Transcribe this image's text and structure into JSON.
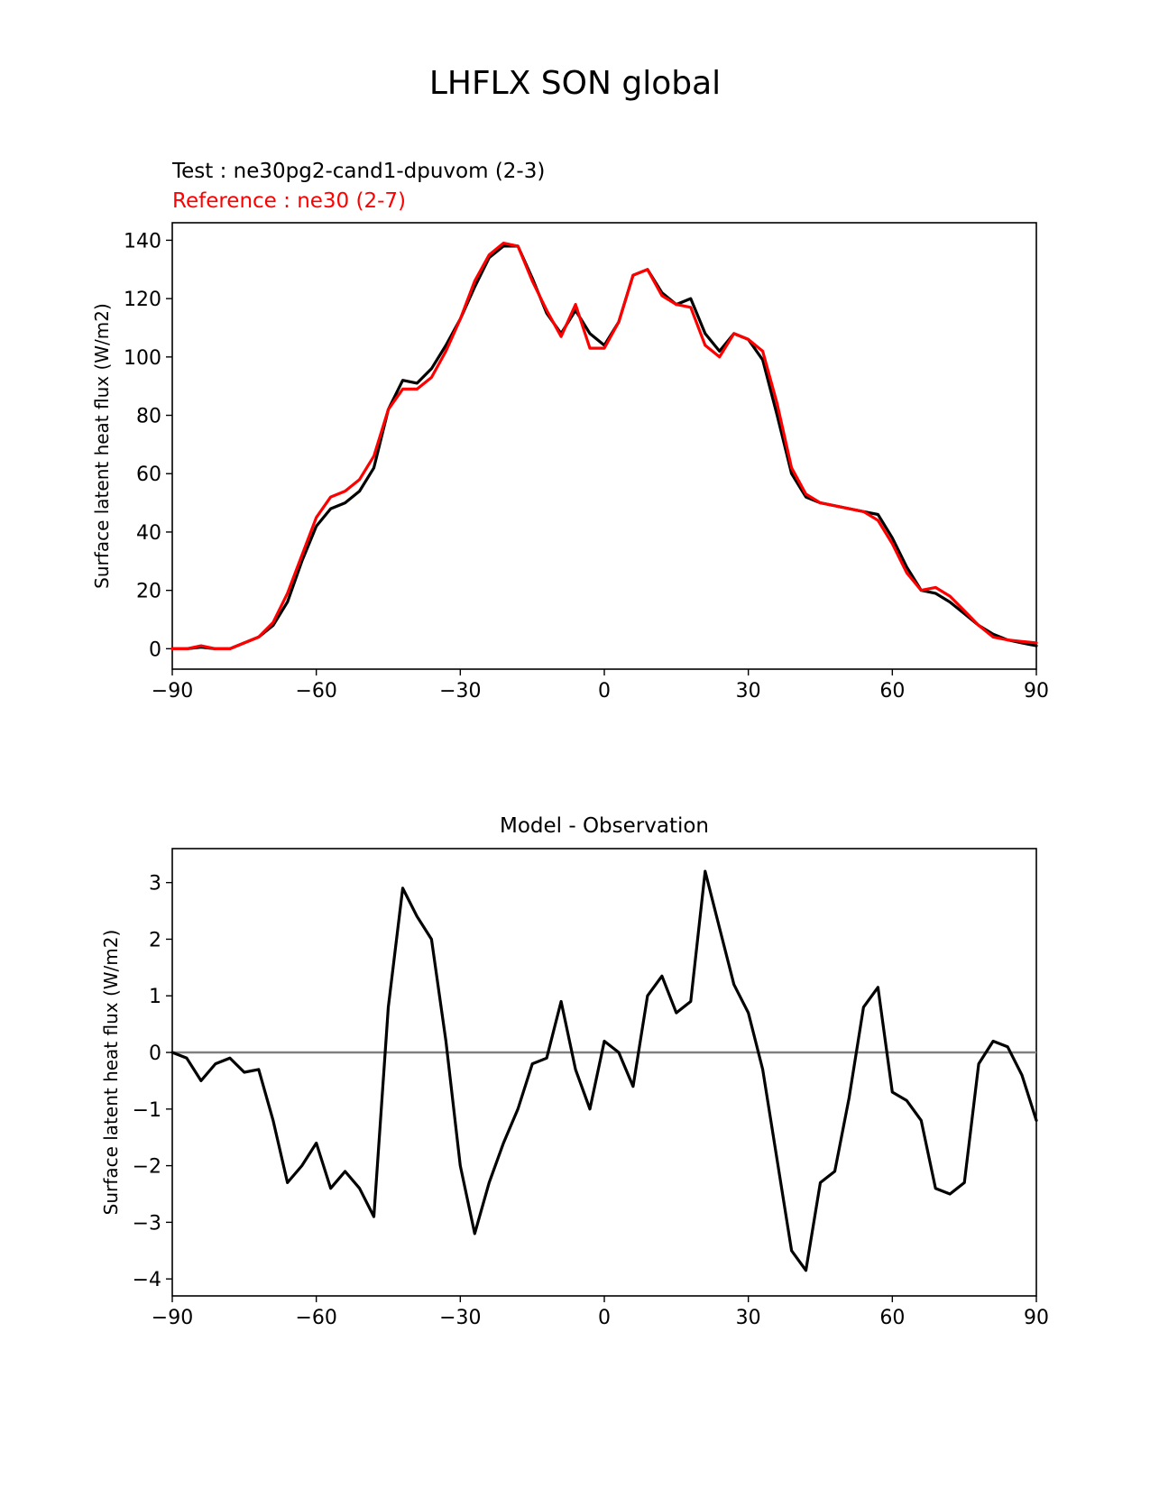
{
  "figure": {
    "title": "LHFLX SON global",
    "colors": {
      "test": "#000000",
      "reference": "#ff0000",
      "zero_line": "#808080",
      "axis": "#000000"
    }
  },
  "chart_data": [
    {
      "type": "line",
      "title": "",
      "test_label": "Test : ne30pg2-cand1-dpuvom (2-3)",
      "reference_label": "Reference : ne30 (2-7)",
      "xlabel": "",
      "ylabel": "Surface latent heat flux (W/m2)",
      "xlim": [
        -90,
        90
      ],
      "ylim": [
        -7,
        146
      ],
      "xticks": [
        -90,
        -60,
        -30,
        0,
        30,
        60,
        90
      ],
      "xtick_labels": [
        "−90",
        "−60",
        "−30",
        "0",
        "30",
        "60",
        "90"
      ],
      "yticks": [
        0,
        20,
        40,
        60,
        80,
        100,
        120,
        140
      ],
      "ytick_labels": [
        "0",
        "20",
        "40",
        "60",
        "80",
        "100",
        "120",
        "140"
      ],
      "series": [
        {
          "name": "Test : ne30pg2-cand1-dpuvom (2-3)",
          "color": "#000000",
          "x": [
            -90,
            -87,
            -84,
            -81,
            -78,
            -75,
            -72,
            -69,
            -66,
            -63,
            -60,
            -57,
            -54,
            -51,
            -48,
            -45,
            -42,
            -39,
            -36,
            -33,
            -30,
            -27,
            -24,
            -21,
            -18,
            -15,
            -12,
            -9,
            -6,
            -3,
            0,
            3,
            6,
            9,
            12,
            15,
            18,
            21,
            24,
            27,
            30,
            33,
            36,
            39,
            42,
            45,
            48,
            51,
            54,
            57,
            60,
            63,
            66,
            69,
            72,
            75,
            78,
            81,
            84,
            87,
            90
          ],
          "y": [
            0,
            0,
            0.5,
            0,
            0,
            2,
            4,
            8,
            16,
            30,
            42,
            48,
            50,
            54,
            62,
            82,
            92,
            91,
            96,
            104,
            113,
            124,
            134,
            138,
            138,
            127,
            115,
            108,
            116,
            108,
            104,
            112,
            128,
            130,
            122,
            118,
            120,
            108,
            102,
            108,
            106,
            99,
            80,
            60,
            52,
            50,
            49,
            48,
            47,
            46,
            38,
            28,
            20,
            19,
            16,
            12,
            8,
            5,
            3,
            2,
            1
          ],
          "values": [
            0,
            0,
            0.5,
            0,
            0,
            2,
            4,
            8,
            16,
            30,
            42,
            48,
            50,
            54,
            62,
            82,
            92,
            91,
            96,
            104,
            113,
            124,
            134,
            138,
            138,
            127,
            115,
            108,
            116,
            108,
            104,
            112,
            128,
            130,
            122,
            118,
            120,
            108,
            102,
            108,
            106,
            99,
            80,
            60,
            52,
            50,
            49,
            48,
            47,
            46,
            38,
            28,
            20,
            19,
            16,
            12,
            8,
            5,
            3,
            2,
            1
          ]
        },
        {
          "name": "Reference : ne30 (2-7)",
          "color": "#ff0000",
          "x": [
            -90,
            -87,
            -84,
            -81,
            -78,
            -75,
            -72,
            -69,
            -66,
            -63,
            -60,
            -57,
            -54,
            -51,
            -48,
            -45,
            -42,
            -39,
            -36,
            -33,
            -30,
            -27,
            -24,
            -21,
            -18,
            -15,
            -12,
            -9,
            -6,
            -3,
            0,
            3,
            6,
            9,
            12,
            15,
            18,
            21,
            24,
            27,
            30,
            33,
            36,
            39,
            42,
            45,
            48,
            51,
            54,
            57,
            60,
            63,
            66,
            69,
            72,
            75,
            78,
            81,
            84,
            87,
            90
          ],
          "y": [
            0,
            0,
            1,
            0,
            0,
            2,
            4,
            9,
            19,
            32,
            45,
            52,
            54,
            58,
            66,
            82,
            89,
            89,
            93,
            102,
            113,
            126,
            135,
            139,
            138,
            126,
            116,
            107,
            118,
            103,
            103,
            112,
            128,
            130,
            121,
            118,
            117,
            104,
            100,
            108,
            106,
            102,
            84,
            62,
            53,
            50,
            49,
            48,
            47,
            44,
            36,
            26,
            20,
            21,
            18,
            13,
            8,
            4,
            3,
            2.5,
            2
          ],
          "values": [
            0,
            0,
            1,
            0,
            0,
            2,
            4,
            9,
            19,
            32,
            45,
            52,
            54,
            58,
            66,
            82,
            89,
            89,
            93,
            102,
            113,
            126,
            135,
            139,
            138,
            126,
            116,
            107,
            118,
            103,
            103,
            112,
            128,
            130,
            121,
            118,
            117,
            104,
            100,
            108,
            106,
            102,
            84,
            62,
            53,
            50,
            49,
            48,
            47,
            44,
            36,
            26,
            20,
            21,
            18,
            13,
            8,
            4,
            3,
            2.5,
            2
          ]
        }
      ]
    },
    {
      "type": "line",
      "title": "Model - Observation",
      "xlabel": "",
      "ylabel": "Surface latent heat flux (W/m2)",
      "xlim": [
        -90,
        90
      ],
      "ylim": [
        -4.3,
        3.6
      ],
      "xticks": [
        -90,
        -60,
        -30,
        0,
        30,
        60,
        90
      ],
      "xtick_labels": [
        "−90",
        "−60",
        "−30",
        "0",
        "30",
        "60",
        "90"
      ],
      "yticks": [
        -4,
        -3,
        -2,
        -1,
        0,
        1,
        2,
        3
      ],
      "ytick_labels": [
        "−4",
        "−3",
        "−2",
        "−1",
        "0",
        "1",
        "2",
        "3"
      ],
      "zero_line": 0,
      "series": [
        {
          "name": "Model - Observation",
          "color": "#000000",
          "x": [
            -90,
            -87,
            -84,
            -81,
            -78,
            -75,
            -72,
            -69,
            -66,
            -63,
            -60,
            -57,
            -54,
            -51,
            -48,
            -45,
            -42,
            -39,
            -36,
            -33,
            -30,
            -27,
            -24,
            -21,
            -18,
            -15,
            -12,
            -9,
            -6,
            -3,
            0,
            3,
            6,
            9,
            12,
            15,
            18,
            21,
            24,
            27,
            30,
            33,
            36,
            39,
            42,
            45,
            48,
            51,
            54,
            57,
            60,
            63,
            66,
            69,
            72,
            75,
            78,
            81,
            84,
            87,
            90
          ],
          "y": [
            0,
            -0.1,
            -0.5,
            -0.2,
            -0.1,
            -0.35,
            -0.3,
            -1.2,
            -2.3,
            -2.0,
            -1.6,
            -2.4,
            -2.1,
            -2.4,
            -2.9,
            0.8,
            2.9,
            2.4,
            2.0,
            0.2,
            -2.0,
            -3.2,
            -2.3,
            -1.6,
            -1.0,
            -0.2,
            -0.1,
            0.9,
            -0.3,
            -1.0,
            0.2,
            0.0,
            -0.6,
            1.0,
            1.35,
            0.7,
            0.9,
            3.2,
            2.2,
            1.2,
            0.7,
            -0.3,
            -1.9,
            -3.5,
            -3.85,
            -2.3,
            -2.1,
            -0.8,
            0.8,
            1.15,
            -0.7,
            -0.85,
            -1.2,
            -2.4,
            -2.5,
            -2.3,
            -0.2,
            0.2,
            0.1,
            -0.4,
            -1.2
          ],
          "values": [
            0,
            -0.1,
            -0.5,
            -0.2,
            -0.1,
            -0.35,
            -0.3,
            -1.2,
            -2.3,
            -2.0,
            -1.6,
            -2.4,
            -2.1,
            -2.4,
            -2.9,
            0.8,
            2.9,
            2.4,
            2.0,
            0.2,
            -2.0,
            -3.2,
            -2.3,
            -1.6,
            -1.0,
            -0.2,
            -0.1,
            0.9,
            -0.3,
            -1.0,
            0.2,
            0.0,
            -0.6,
            1.0,
            1.35,
            0.7,
            0.9,
            3.2,
            2.2,
            1.2,
            0.7,
            -0.3,
            -1.9,
            -3.5,
            -3.85,
            -2.3,
            -2.1,
            -0.8,
            0.8,
            1.15,
            -0.7,
            -0.85,
            -1.2,
            -2.4,
            -2.5,
            -2.3,
            -0.2,
            0.2,
            0.1,
            -0.4,
            -1.2
          ]
        }
      ]
    }
  ]
}
